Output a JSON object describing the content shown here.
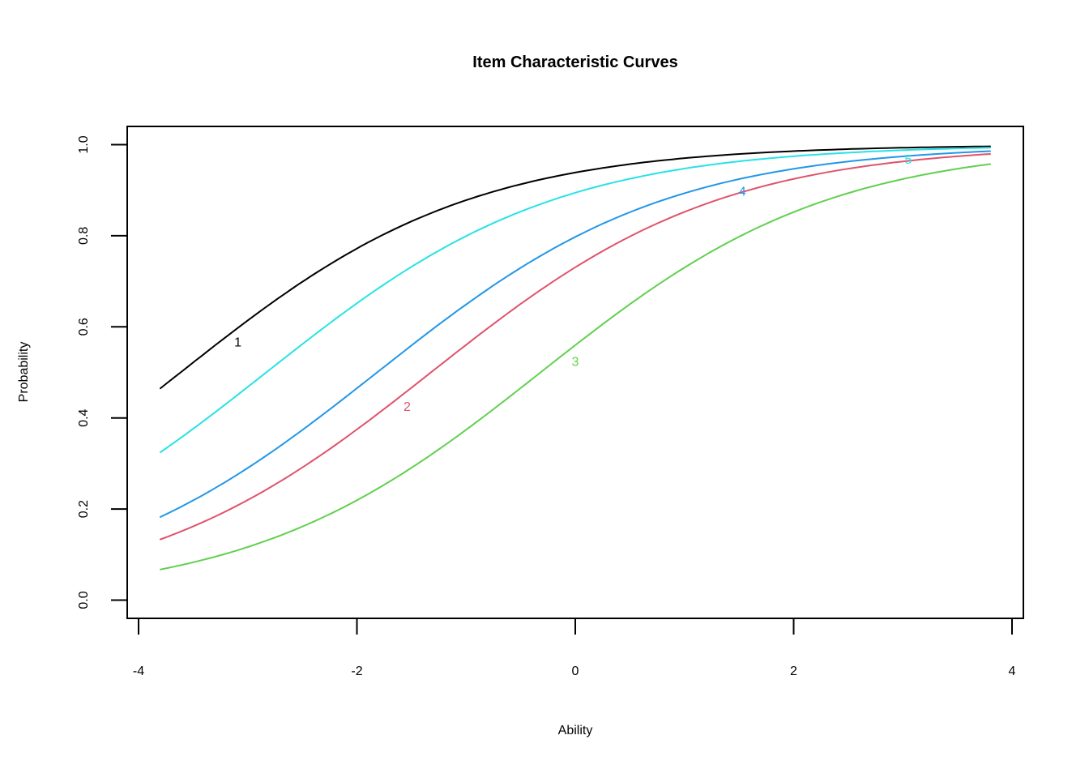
{
  "background_color": "#ffffff",
  "axis_color": "#000000",
  "chart_data": {
    "type": "line",
    "title": "Item Characteristic Curves",
    "xlabel": "Ability",
    "ylabel": "Probability",
    "xlim": [
      -4,
      4
    ],
    "ylim": [
      0,
      1
    ],
    "axis_range_x": [
      -4.104,
      4.104
    ],
    "axis_range_y": [
      -0.04,
      1.04
    ],
    "x_plot_range": [
      -3.8,
      3.8
    ],
    "grid": false,
    "legend": "inline numeric labels printed on each curve",
    "x_ticks": {
      "values": [
        -4,
        -2,
        0,
        2,
        4
      ],
      "labels": [
        "-4",
        "-2",
        "0",
        "2",
        "4"
      ]
    },
    "y_ticks": {
      "values": [
        0,
        0.2,
        0.4,
        0.6,
        0.8,
        1
      ],
      "labels": [
        "0.0",
        "0.2",
        "0.4",
        "0.6",
        "0.8",
        "1.0"
      ]
    },
    "model": "logistic ICC: P(x) = 1 / (1 + exp(-a*(x - b)))",
    "sample_x": [
      -3.8,
      -3,
      -2,
      -1,
      0,
      1,
      2,
      3,
      3.8
    ],
    "series": [
      {
        "item": "1",
        "color": "#000000",
        "a": 0.755,
        "b": -3.615,
        "label_pos": {
          "x": -3.09,
          "y": 0.566
        },
        "sample_y": [
          0.465,
          0.614,
          0.772,
          0.878,
          0.939,
          0.97,
          0.986,
          0.993,
          0.996
        ]
      },
      {
        "item": "2",
        "color": "#DF536B",
        "a": 0.755,
        "b": -1.322,
        "label_pos": {
          "x": -1.54,
          "y": 0.424
        },
        "sample_y": [
          0.133,
          0.22,
          0.375,
          0.561,
          0.731,
          0.852,
          0.925,
          0.963,
          0.98
        ]
      },
      {
        "item": "3",
        "color": "#61D04F",
        "a": 0.755,
        "b": -0.318,
        "label_pos": {
          "x": 0.0,
          "y": 0.523
        },
        "sample_y": [
          0.067,
          0.117,
          0.219,
          0.374,
          0.56,
          0.73,
          0.852,
          0.925,
          0.957
        ]
      },
      {
        "item": "4",
        "color": "#2297E6",
        "a": 0.755,
        "b": -1.815,
        "label_pos": {
          "x": 1.53,
          "y": 0.897
        },
        "sample_y": [
          0.183,
          0.29,
          0.465,
          0.649,
          0.797,
          0.893,
          0.947,
          0.974,
          0.986
        ]
      },
      {
        "item": "5",
        "color": "#28E2E5",
        "a": 0.755,
        "b": -2.83,
        "label_pos": {
          "x": 3.05,
          "y": 0.967
        },
        "sample_y": [
          0.325,
          0.468,
          0.652,
          0.799,
          0.894,
          0.947,
          0.975,
          0.988,
          0.993
        ]
      }
    ]
  }
}
